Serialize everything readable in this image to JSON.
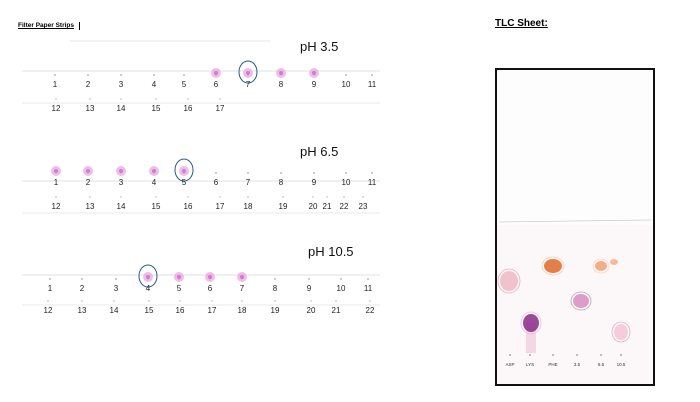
{
  "header": {
    "title": "Filter Paper Strips"
  },
  "tlc": {
    "title": "TLC Sheet:",
    "lanes": [
      "ASP",
      "LYS",
      "PHE",
      "3.5",
      "6.5",
      "10.5"
    ],
    "spots": [
      {
        "lane": "ASP",
        "color": "#f0b8c4",
        "ring": "#d9a0b0"
      },
      {
        "lane": "LYS",
        "color": "#8a2a88",
        "ring": "#e4b8d8"
      },
      {
        "lane": "PHE",
        "color": "#e06a2a",
        "ring": "#f2c4a8"
      },
      {
        "lane": "3.5",
        "color": "#f3a070",
        "ring": "#f8d0b8"
      },
      {
        "lane": "6.5",
        "color": "#d88cc0",
        "ring": "#999999"
      },
      {
        "lane": "10.5",
        "color": "#f4c4d8",
        "ring": "#c8a8b8"
      }
    ]
  },
  "strips": [
    {
      "label": "pH 3.5",
      "top_numbers": [
        "1",
        "2",
        "3",
        "4",
        "5",
        "6",
        "7",
        "8",
        "9",
        "10",
        "11"
      ],
      "bottom_numbers": [
        "12",
        "13",
        "14",
        "15",
        "16",
        "17"
      ],
      "spot_indices": [
        6,
        7,
        8,
        9
      ],
      "circled_index": 7
    },
    {
      "label": "pH 6.5",
      "top_numbers": [
        "1",
        "2",
        "3",
        "4",
        "5",
        "6",
        "7",
        "8",
        "9",
        "10",
        "11"
      ],
      "bottom_numbers": [
        "12",
        "13",
        "14",
        "15",
        "16",
        "17",
        "18",
        "19",
        "20",
        "21",
        "22",
        "23"
      ],
      "spot_indices": [
        1,
        2,
        3,
        4,
        5
      ],
      "circled_index": 5
    },
    {
      "label": "pH 10.5",
      "top_numbers": [
        "1",
        "2",
        "3",
        "4",
        "5",
        "6",
        "7",
        "8",
        "9",
        "10",
        "11"
      ],
      "bottom_numbers": [
        "12",
        "13",
        "14",
        "15",
        "16",
        "17",
        "18",
        "19",
        "20",
        "21",
        "22"
      ],
      "spot_indices": [
        4,
        5,
        6,
        7
      ],
      "circled_index": 4
    }
  ],
  "colors": {
    "spot": "#e8a8e0",
    "spot_core": "#c86cc8",
    "circle": "#2a5a8a"
  }
}
